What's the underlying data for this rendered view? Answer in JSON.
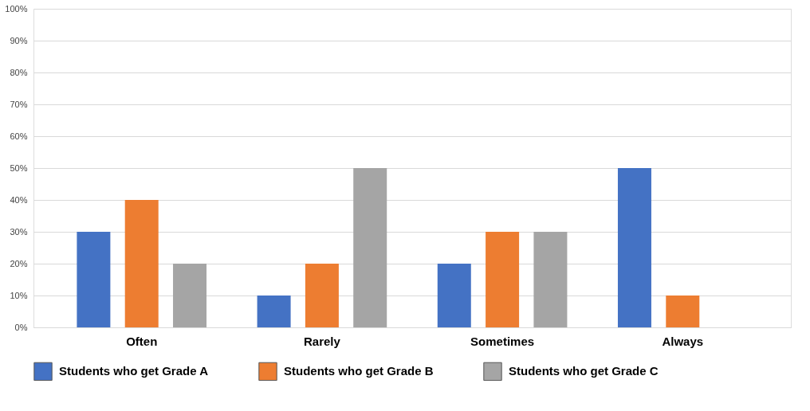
{
  "chart_data": {
    "type": "bar",
    "categories": [
      "Often",
      "Rarely",
      "Sometimes",
      "Always"
    ],
    "series": [
      {
        "name": "Students who get Grade A",
        "color": "#4472c4",
        "values": [
          30,
          10,
          20,
          50
        ]
      },
      {
        "name": "Students who get Grade B",
        "color": "#ed7d31",
        "values": [
          40,
          20,
          30,
          10
        ]
      },
      {
        "name": "Students who get Grade C",
        "color": "#a5a5a5",
        "values": [
          20,
          50,
          30,
          null
        ]
      }
    ],
    "ylim": [
      0,
      100
    ],
    "yticks": [
      {
        "value": 0,
        "label": "0%"
      },
      {
        "value": 10,
        "label": "10%"
      },
      {
        "value": 20,
        "label": "20%"
      },
      {
        "value": 30,
        "label": "30%"
      },
      {
        "value": 40,
        "label": "40%"
      },
      {
        "value": 50,
        "label": "50%"
      },
      {
        "value": 60,
        "label": "60%"
      },
      {
        "value": 70,
        "label": "70%"
      },
      {
        "value": 80,
        "label": "80%"
      },
      {
        "value": 90,
        "label": "90%"
      },
      {
        "value": 100,
        "label": "100%"
      }
    ],
    "grid": "y",
    "legend": "bottom"
  }
}
